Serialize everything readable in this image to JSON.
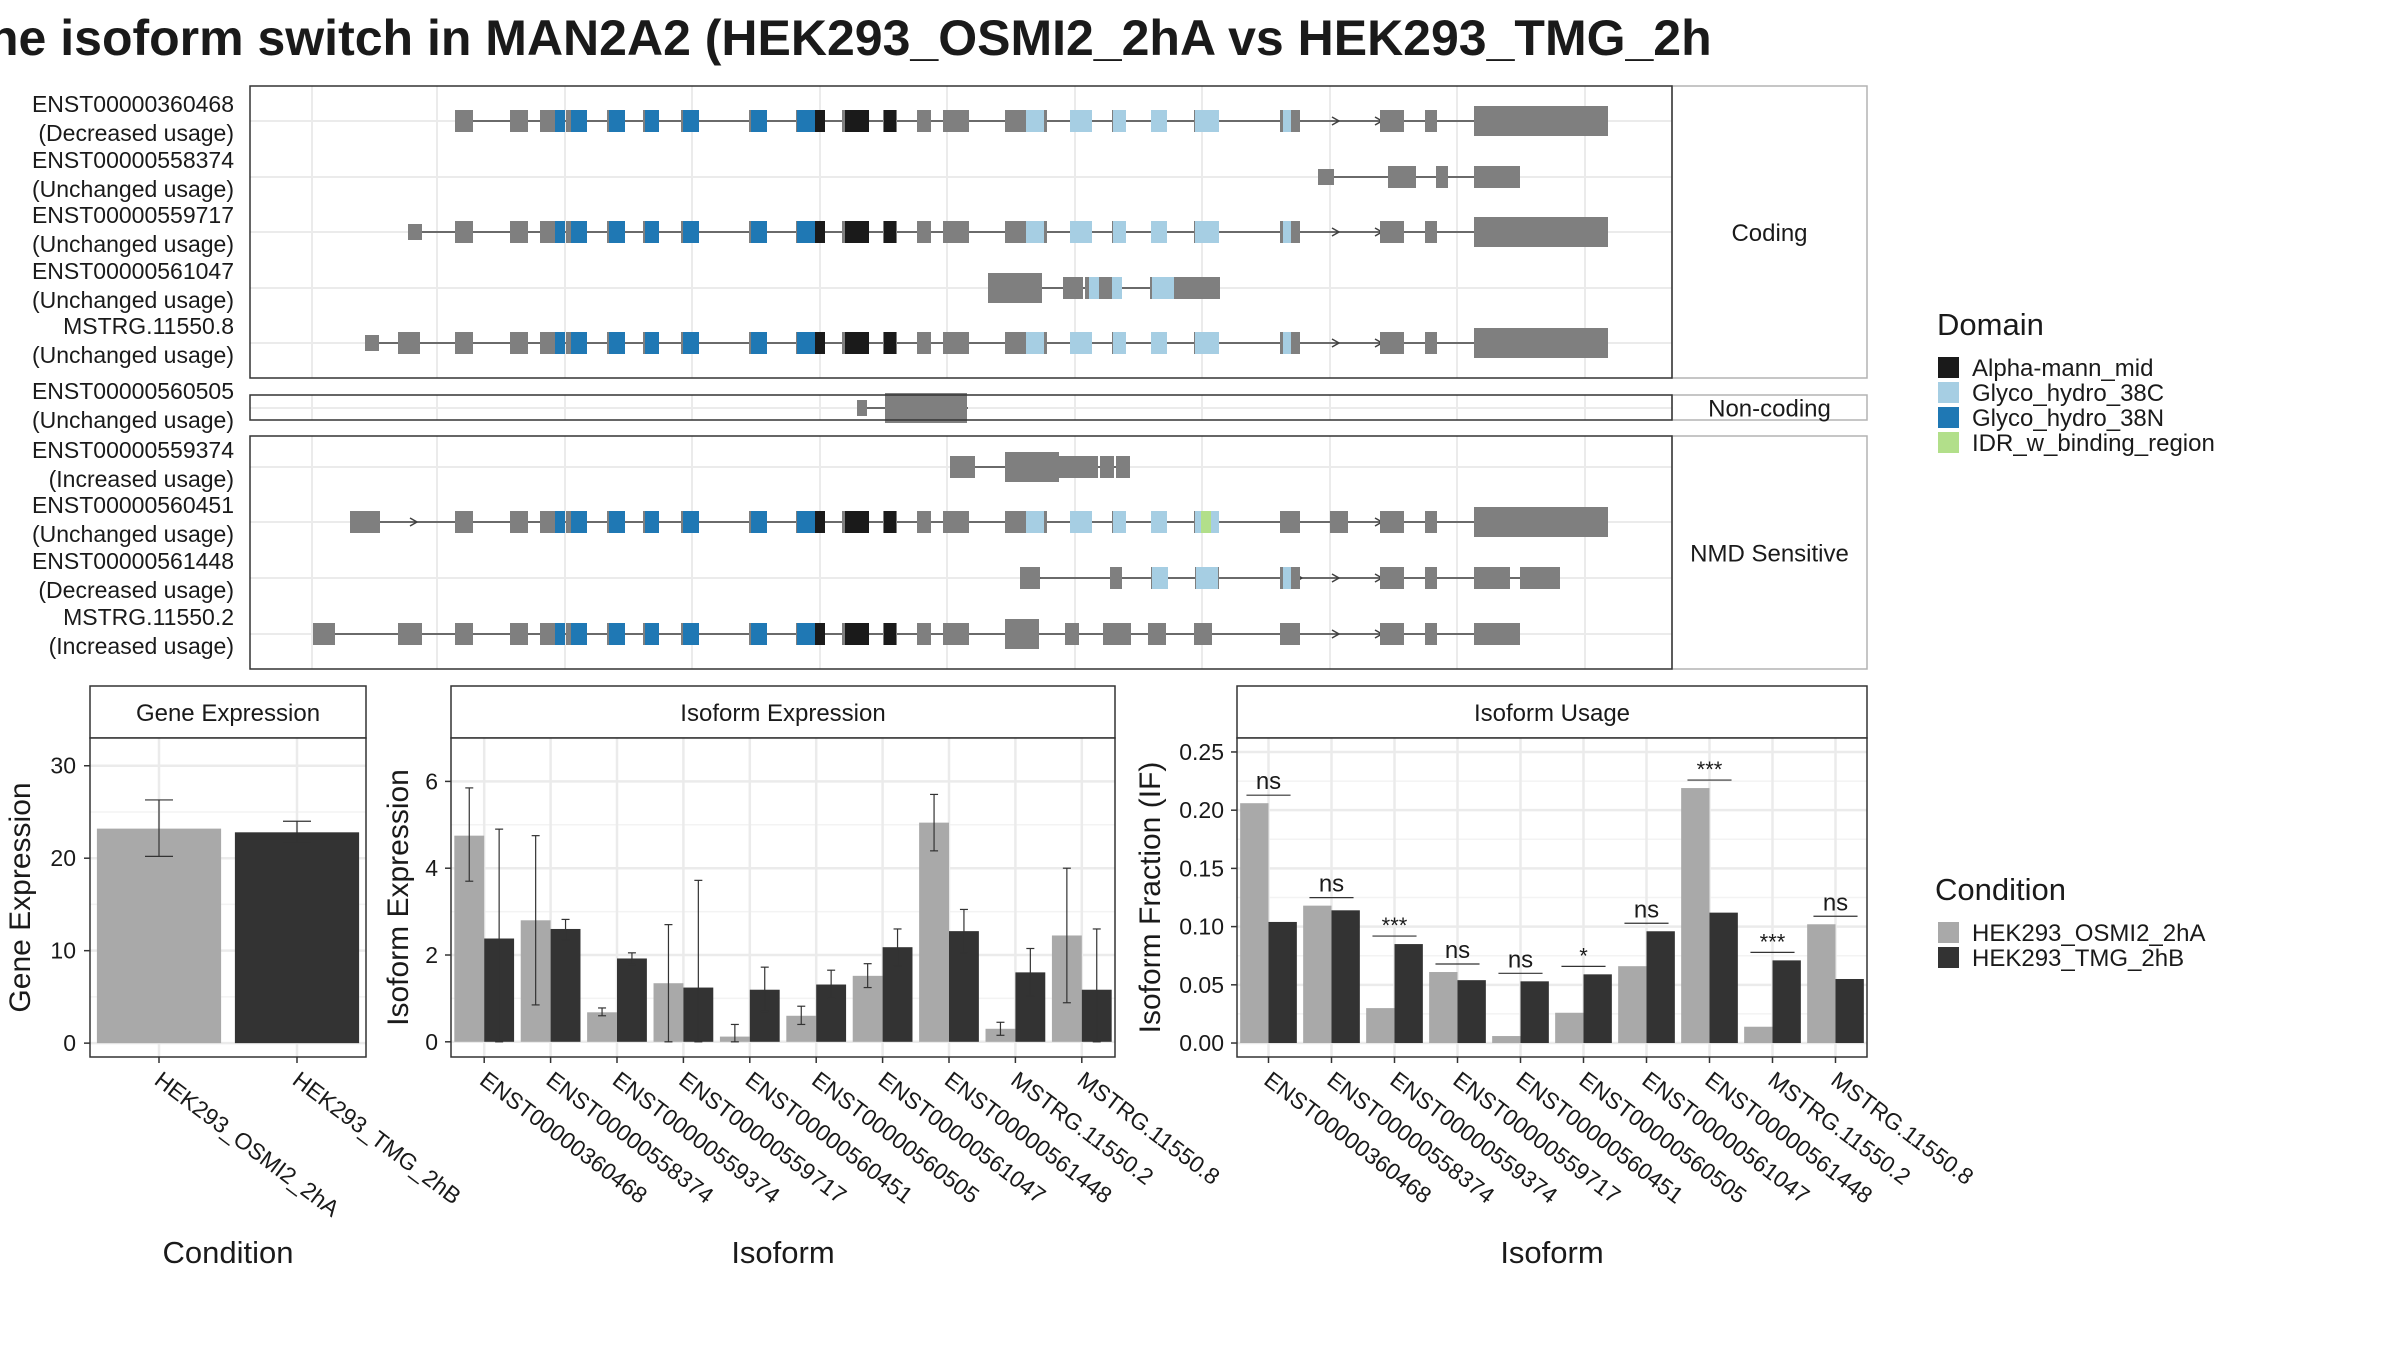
{
  "title": "ne isoform switch in MAN2A2 (HEK293_OSMI2_2hA vs HEK293_TMG_2h",
  "colors": {
    "Alpha-mann_mid": "#1a1a1a",
    "Glyco_hydro_38C": "#a6cee3",
    "Glyco_hydro_38N": "#1f78b4",
    "IDR_w_binding_region": "#b2df8a",
    "exon": "#7f7f7f",
    "cond1": "#a9a9a9",
    "cond2": "#333333"
  },
  "structure": {
    "groups": [
      {
        "label": "Coding",
        "rows": [
          {
            "id": "ENST00000360468",
            "usage": "(Decreased usage)"
          },
          {
            "id": "ENST00000558374",
            "usage": "(Unchanged usage)"
          },
          {
            "id": "ENST00000559717",
            "usage": "(Unchanged usage)"
          },
          {
            "id": "ENST00000561047",
            "usage": "(Unchanged usage)"
          },
          {
            "id": "MSTRG.11550.8",
            "usage": "(Unchanged usage)"
          }
        ]
      },
      {
        "label": "Non-coding",
        "rows": [
          {
            "id": "ENST00000560505",
            "usage": "(Unchanged usage)"
          }
        ]
      },
      {
        "label": "NMD Sensitive",
        "rows": [
          {
            "id": "ENST00000559374",
            "usage": "(Increased usage)"
          },
          {
            "id": "ENST00000560451",
            "usage": "(Unchanged usage)"
          },
          {
            "id": "ENST00000561448",
            "usage": "(Decreased usage)"
          },
          {
            "id": "MSTRG.11550.2",
            "usage": "(Increased usage)"
          }
        ]
      }
    ]
  },
  "legend_domain": {
    "title": "Domain",
    "items": [
      "Alpha-mann_mid",
      "Glyco_hydro_38C",
      "Glyco_hydro_38N",
      "IDR_w_binding_region"
    ]
  },
  "legend_condition": {
    "title": "Condition",
    "items": [
      "HEK293_OSMI2_2hA",
      "HEK293_TMG_2hB"
    ]
  },
  "chart_data": [
    {
      "type": "bar",
      "title": "Gene Expression",
      "xlabel": "Condition",
      "ylabel": "Gene Expression",
      "categories": [
        "HEK293_OSMI2_2hA",
        "HEK293_TMG_2hB"
      ],
      "values": [
        23.2,
        22.8
      ],
      "error_low": [
        20.2,
        21.6
      ],
      "error_high": [
        26.3,
        24.0
      ],
      "ylim": [
        -1.5,
        33
      ],
      "yticks": [
        0,
        10,
        20,
        30
      ]
    },
    {
      "type": "bar",
      "title": "Isoform Expression",
      "xlabel": "Isoform",
      "ylabel": "Isoform Expression",
      "categories": [
        "ENST00000360468",
        "ENST00000558374",
        "ENST00000559374",
        "ENST00000559717",
        "ENST00000560451",
        "ENST00000560505",
        "ENST00000561047",
        "ENST00000561448",
        "MSTRG.11550.2",
        "MSTRG.11550.8"
      ],
      "series": [
        {
          "name": "HEK293_OSMI2_2hA",
          "values": [
            4.75,
            2.8,
            0.68,
            1.35,
            0.12,
            0.6,
            1.52,
            5.05,
            0.3,
            2.45
          ],
          "error_low": [
            3.7,
            0.85,
            0.6,
            0.0,
            0.0,
            0.4,
            1.25,
            4.4,
            0.15,
            0.9
          ],
          "error_high": [
            5.85,
            4.75,
            0.78,
            2.7,
            0.4,
            0.82,
            1.8,
            5.7,
            0.45,
            4.0
          ]
        },
        {
          "name": "HEK293_TMG_2hB",
          "values": [
            2.38,
            2.6,
            1.92,
            1.25,
            1.2,
            1.32,
            2.18,
            2.55,
            1.6,
            1.2
          ],
          "error_low": [
            0.0,
            2.35,
            1.78,
            0.0,
            0.7,
            1.0,
            1.75,
            2.05,
            1.05,
            0.0
          ],
          "error_high": [
            4.9,
            2.82,
            2.05,
            3.72,
            1.72,
            1.65,
            2.6,
            3.05,
            2.15,
            2.6
          ]
        }
      ],
      "ylim": [
        -0.35,
        7.0
      ],
      "yticks": [
        0,
        2,
        4,
        6
      ]
    },
    {
      "type": "bar",
      "title": "Isoform Usage",
      "xlabel": "Isoform",
      "ylabel": "Isoform Fraction (IF)",
      "categories": [
        "ENST00000360468",
        "ENST00000558374",
        "ENST00000559374",
        "ENST00000559717",
        "ENST00000560451",
        "ENST00000560505",
        "ENST00000561047",
        "ENST00000561448",
        "MSTRG.11550.2",
        "MSTRG.11550.8"
      ],
      "series": [
        {
          "name": "HEK293_OSMI2_2hA",
          "values": [
            0.206,
            0.118,
            0.03,
            0.061,
            0.006,
            0.026,
            0.066,
            0.219,
            0.014,
            0.102
          ]
        },
        {
          "name": "HEK293_TMG_2hB",
          "values": [
            0.104,
            0.114,
            0.085,
            0.054,
            0.053,
            0.059,
            0.096,
            0.112,
            0.071,
            0.055
          ]
        }
      ],
      "significance": [
        "ns",
        "ns",
        "***",
        "ns",
        "ns",
        "*",
        "ns",
        "***",
        "***",
        "ns"
      ],
      "ylim": [
        -0.012,
        0.262
      ],
      "yticks": [
        0.0,
        0.05,
        0.1,
        0.15,
        0.2,
        0.25
      ],
      "ytick_labels": [
        "0.00",
        "0.05",
        "0.10",
        "0.15",
        "0.20",
        "0.25"
      ]
    }
  ]
}
